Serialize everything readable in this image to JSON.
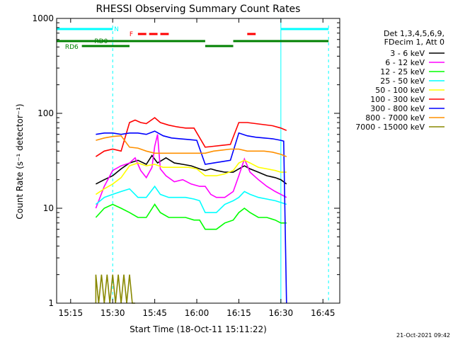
{
  "chart_data": {
    "type": "line",
    "title": "RHESSI Observing Summary Count Rates",
    "xlabel": "Start Time (18-Oct-11 15:11:22)",
    "ylabel": "Count Rate (s⁻¹ detector⁻¹)",
    "xlim": [
      "15:10",
      "16:51"
    ],
    "ylim": [
      1,
      1000
    ],
    "y_scale": "log",
    "x_ticks": [
      "15:15",
      "15:30",
      "15:45",
      "16:00",
      "16:15",
      "16:30",
      "16:45"
    ],
    "y_ticks": [
      "1",
      "10",
      "100",
      "1000"
    ],
    "legend_header": [
      "Det 1,3,4,5,6,9,",
      "FDecim 1, Att 0"
    ],
    "legend_position": "right",
    "grid": false,
    "footer": "21-Oct-2021 09:42",
    "series": [
      {
        "name": "3 - 6 keV",
        "color": "#000000",
        "points": [
          [
            "15:24",
            18
          ],
          [
            "15:27",
            20
          ],
          [
            "15:30",
            22
          ],
          [
            "15:33",
            26
          ],
          [
            "15:36",
            30
          ],
          [
            "15:39",
            32
          ],
          [
            "15:42",
            29
          ],
          [
            "15:44",
            36
          ],
          [
            "15:46",
            30
          ],
          [
            "15:49",
            34
          ],
          [
            "15:52",
            30
          ],
          [
            "15:55",
            29
          ],
          [
            "15:58",
            28
          ],
          [
            "16:01",
            26
          ],
          [
            "16:03",
            25
          ],
          [
            "16:05",
            26
          ],
          [
            "16:07",
            25
          ],
          [
            "16:10",
            24
          ],
          [
            "16:13",
            24
          ],
          [
            "16:15",
            26
          ],
          [
            "16:17",
            28
          ],
          [
            "16:19",
            26
          ],
          [
            "16:22",
            24
          ],
          [
            "16:25",
            22
          ],
          [
            "16:28",
            21
          ],
          [
            "16:30",
            20
          ],
          [
            "16:32",
            18
          ]
        ]
      },
      {
        "name": "6 - 12 keV",
        "color": "#ff00ff",
        "points": [
          [
            "15:24",
            10
          ],
          [
            "15:27",
            17
          ],
          [
            "15:30",
            25
          ],
          [
            "15:33",
            28
          ],
          [
            "15:36",
            30
          ],
          [
            "15:38",
            34
          ],
          [
            "15:40",
            25
          ],
          [
            "15:42",
            21
          ],
          [
            "15:44",
            27
          ],
          [
            "15:45",
            45
          ],
          [
            "15:46",
            60
          ],
          [
            "15:47",
            26
          ],
          [
            "15:49",
            22
          ],
          [
            "15:52",
            19
          ],
          [
            "15:55",
            20
          ],
          [
            "15:58",
            18
          ],
          [
            "16:01",
            17
          ],
          [
            "16:03",
            17
          ],
          [
            "16:05",
            14
          ],
          [
            "16:07",
            13
          ],
          [
            "16:10",
            13
          ],
          [
            "16:13",
            15
          ],
          [
            "16:15",
            22
          ],
          [
            "16:17",
            33
          ],
          [
            "16:19",
            24
          ],
          [
            "16:22",
            20
          ],
          [
            "16:25",
            17
          ],
          [
            "16:28",
            15
          ],
          [
            "16:30",
            14
          ],
          [
            "16:32",
            13
          ]
        ]
      },
      {
        "name": "12 - 25 keV",
        "color": "#00ff00",
        "points": [
          [
            "15:24",
            8
          ],
          [
            "15:27",
            10
          ],
          [
            "15:30",
            11
          ],
          [
            "15:33",
            10
          ],
          [
            "15:36",
            9
          ],
          [
            "15:39",
            8
          ],
          [
            "15:42",
            8
          ],
          [
            "15:45",
            11
          ],
          [
            "15:47",
            9
          ],
          [
            "15:50",
            8
          ],
          [
            "15:53",
            8
          ],
          [
            "15:56",
            8
          ],
          [
            "15:59",
            7.5
          ],
          [
            "16:01",
            7.5
          ],
          [
            "16:03",
            6
          ],
          [
            "16:05",
            6
          ],
          [
            "16:07",
            6
          ],
          [
            "16:10",
            7
          ],
          [
            "16:13",
            7.5
          ],
          [
            "16:15",
            9
          ],
          [
            "16:17",
            10
          ],
          [
            "16:19",
            9
          ],
          [
            "16:22",
            8
          ],
          [
            "16:25",
            8
          ],
          [
            "16:28",
            7.5
          ],
          [
            "16:30",
            7
          ],
          [
            "16:32",
            7
          ]
        ]
      },
      {
        "name": "25 - 50 keV",
        "color": "#00ffff",
        "points": [
          [
            "15:24",
            11
          ],
          [
            "15:27",
            13
          ],
          [
            "15:30",
            14
          ],
          [
            "15:33",
            15
          ],
          [
            "15:36",
            16
          ],
          [
            "15:39",
            13
          ],
          [
            "15:42",
            13
          ],
          [
            "15:45",
            17
          ],
          [
            "15:47",
            14
          ],
          [
            "15:50",
            13
          ],
          [
            "15:53",
            13
          ],
          [
            "15:56",
            13
          ],
          [
            "15:59",
            12.5
          ],
          [
            "16:01",
            12
          ],
          [
            "16:03",
            9
          ],
          [
            "16:05",
            9
          ],
          [
            "16:07",
            9
          ],
          [
            "16:10",
            11
          ],
          [
            "16:13",
            12
          ],
          [
            "16:15",
            13
          ],
          [
            "16:17",
            15
          ],
          [
            "16:19",
            14
          ],
          [
            "16:22",
            13
          ],
          [
            "16:25",
            12.5
          ],
          [
            "16:28",
            12
          ],
          [
            "16:30",
            11.5
          ],
          [
            "16:32",
            11
          ]
        ]
      },
      {
        "name": "50 - 100 keV",
        "color": "#ffff00",
        "points": [
          [
            "15:24",
            14
          ],
          [
            "15:27",
            16
          ],
          [
            "15:30",
            18
          ],
          [
            "15:33",
            21
          ],
          [
            "15:36",
            28
          ],
          [
            "15:39",
            30
          ],
          [
            "15:42",
            28
          ],
          [
            "15:45",
            29
          ],
          [
            "15:48",
            27
          ],
          [
            "15:51",
            27
          ],
          [
            "15:54",
            27
          ],
          [
            "15:57",
            27
          ],
          [
            "16:00",
            26
          ],
          [
            "16:03",
            22
          ],
          [
            "16:05",
            22
          ],
          [
            "16:07",
            22
          ],
          [
            "16:10",
            23
          ],
          [
            "16:13",
            25
          ],
          [
            "16:15",
            30
          ],
          [
            "16:17",
            32
          ],
          [
            "16:19",
            30
          ],
          [
            "16:22",
            27
          ],
          [
            "16:25",
            26
          ],
          [
            "16:28",
            25
          ],
          [
            "16:30",
            24
          ],
          [
            "16:32",
            24
          ]
        ]
      },
      {
        "name": "100 - 300 keV",
        "color": "#ff0000",
        "points": [
          [
            "15:24",
            35
          ],
          [
            "15:27",
            40
          ],
          [
            "15:30",
            42
          ],
          [
            "15:33",
            40
          ],
          [
            "15:36",
            80
          ],
          [
            "15:38",
            85
          ],
          [
            "15:40",
            80
          ],
          [
            "15:42",
            78
          ],
          [
            "15:45",
            90
          ],
          [
            "15:47",
            80
          ],
          [
            "15:50",
            75
          ],
          [
            "15:53",
            72
          ],
          [
            "15:56",
            70
          ],
          [
            "15:59",
            70
          ],
          [
            "16:03",
            44
          ],
          [
            "16:06",
            45
          ],
          [
            "16:09",
            46
          ],
          [
            "16:12",
            47
          ],
          [
            "16:15",
            80
          ],
          [
            "16:18",
            80
          ],
          [
            "16:21",
            78
          ],
          [
            "16:24",
            76
          ],
          [
            "16:27",
            74
          ],
          [
            "16:30",
            70
          ],
          [
            "16:32",
            66
          ]
        ]
      },
      {
        "name": "300 - 800 keV",
        "color": "#0000ff",
        "points": [
          [
            "15:24",
            60
          ],
          [
            "15:27",
            62
          ],
          [
            "15:30",
            62
          ],
          [
            "15:33",
            60
          ],
          [
            "15:36",
            62
          ],
          [
            "15:39",
            62
          ],
          [
            "15:42",
            60
          ],
          [
            "15:45",
            65
          ],
          [
            "15:48",
            58
          ],
          [
            "15:51",
            55
          ],
          [
            "15:54",
            54
          ],
          [
            "15:57",
            53
          ],
          [
            "16:00",
            52
          ],
          [
            "16:03",
            29
          ],
          [
            "16:06",
            30
          ],
          [
            "16:09",
            31
          ],
          [
            "16:12",
            32
          ],
          [
            "16:15",
            62
          ],
          [
            "16:18",
            58
          ],
          [
            "16:21",
            56
          ],
          [
            "16:24",
            55
          ],
          [
            "16:27",
            54
          ],
          [
            "16:30",
            52
          ],
          [
            "16:31",
            51
          ],
          [
            "16:32",
            1
          ]
        ]
      },
      {
        "name": "800 - 7000 keV",
        "color": "#ff9000",
        "points": [
          [
            "15:24",
            52
          ],
          [
            "15:27",
            55
          ],
          [
            "15:30",
            57
          ],
          [
            "15:33",
            58
          ],
          [
            "15:36",
            44
          ],
          [
            "15:39",
            43
          ],
          [
            "15:42",
            40
          ],
          [
            "15:45",
            38
          ],
          [
            "15:48",
            38
          ],
          [
            "15:51",
            38
          ],
          [
            "15:54",
            38
          ],
          [
            "15:57",
            38
          ],
          [
            "16:00",
            38
          ],
          [
            "16:03",
            38
          ],
          [
            "16:06",
            40
          ],
          [
            "16:09",
            41
          ],
          [
            "16:12",
            42
          ],
          [
            "16:15",
            42
          ],
          [
            "16:18",
            40
          ],
          [
            "16:21",
            40
          ],
          [
            "16:24",
            40
          ],
          [
            "16:27",
            39
          ],
          [
            "16:30",
            37
          ],
          [
            "16:32",
            35
          ]
        ]
      },
      {
        "name": "7000 - 15000 keV",
        "color": "#888800",
        "points": [
          [
            "15:24",
            1
          ],
          [
            "15:24",
            2
          ],
          [
            "15:25",
            1
          ],
          [
            "15:26",
            2
          ],
          [
            "15:27",
            1
          ],
          [
            "15:28",
            2
          ],
          [
            "15:29",
            1
          ],
          [
            "15:30",
            2
          ],
          [
            "15:31",
            1
          ],
          [
            "15:32",
            2
          ],
          [
            "15:33",
            1
          ],
          [
            "15:34",
            2
          ],
          [
            "15:35",
            1
          ],
          [
            "15:36",
            2
          ],
          [
            "15:37",
            1
          ],
          [
            "15:38",
            1
          ]
        ]
      }
    ],
    "state_bars": {
      "N": {
        "label": "N",
        "color": "#00ffff",
        "segments": [
          [
            "15:10",
            "15:30"
          ],
          [
            "16:30",
            "16:47"
          ]
        ],
        "level": 1
      },
      "F": {
        "label": "F",
        "color": "#ff0000",
        "segments": [
          [
            "15:39",
            "15:42"
          ],
          [
            "15:43",
            "15:46"
          ],
          [
            "15:47",
            "15:50"
          ],
          [
            "16:18",
            "16:21"
          ]
        ],
        "level": 2
      },
      "RD0": {
        "label": "RD0",
        "color": "#008000",
        "segments": [
          [
            "15:10",
            "15:36"
          ],
          [
            "15:36",
            "16:03"
          ],
          [
            "16:13",
            "16:47"
          ]
        ],
        "level": 3
      },
      "RD6": {
        "label": "RD6",
        "color": "#008000",
        "segments": [
          [
            "15:19",
            "15:36"
          ],
          [
            "16:03",
            "16:13"
          ]
        ],
        "level": 4
      }
    },
    "eclipse_lines": [
      "15:10",
      "16:30"
    ],
    "saa_lines": [
      "15:30",
      "16:47"
    ]
  }
}
